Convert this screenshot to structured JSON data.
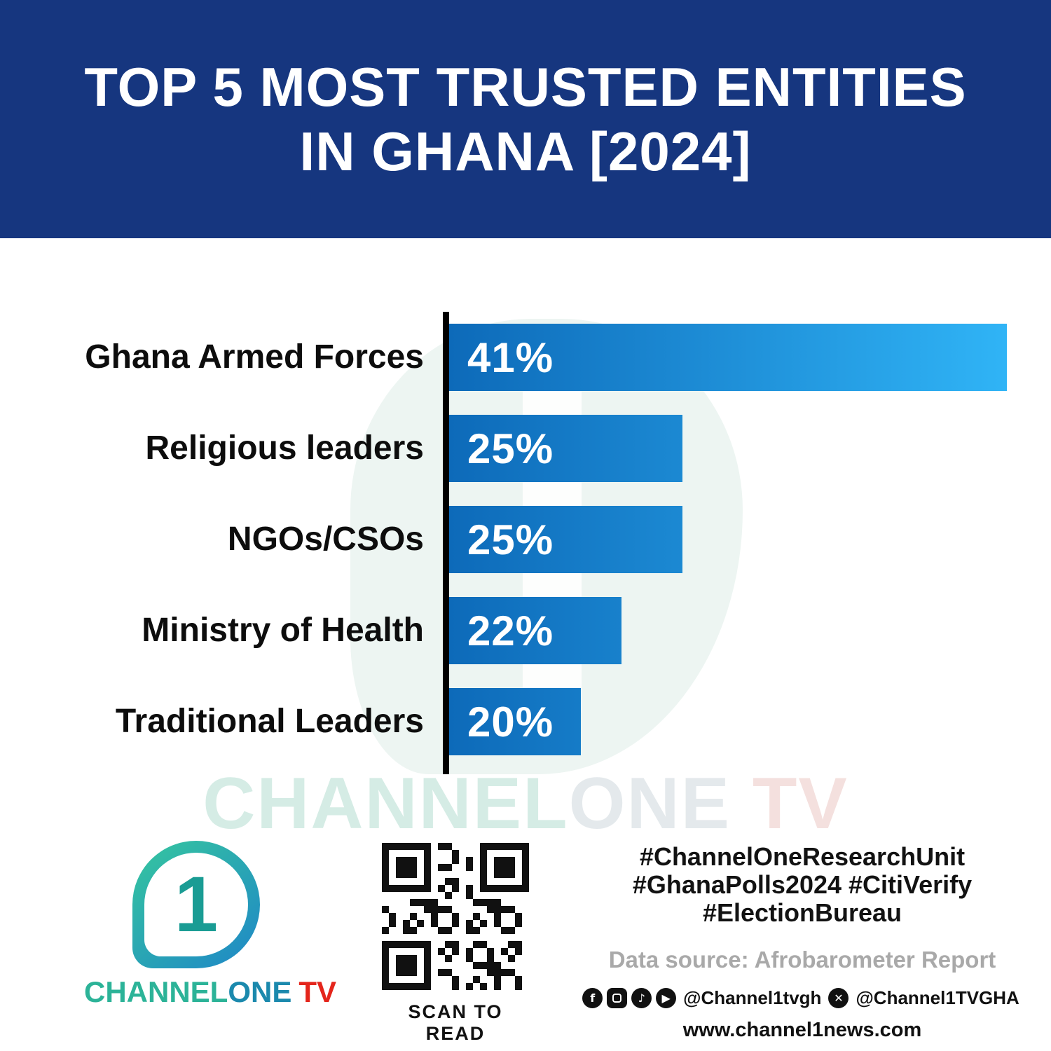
{
  "header": {
    "title_line1": "TOP 5 MOST TRUSTED ENTITIES",
    "title_line2": "IN GHANA [2024]"
  },
  "chart_data": {
    "type": "bar",
    "orientation": "horizontal",
    "title": "Top 5 Most Trusted Entities in Ghana [2024]",
    "categories": [
      "Ghana Armed Forces",
      "Religious leaders",
      "NGOs/CSOs",
      "Ministry of Health",
      "Traditional Leaders"
    ],
    "values": [
      41,
      25,
      25,
      22,
      20
    ],
    "value_labels": [
      "41%",
      "25%",
      "25%",
      "22%",
      "20%"
    ],
    "unit": "percent",
    "axis_display_range": [
      13.5,
      41
    ],
    "bar_color_start": "#0d6ab9",
    "bar_color_end": "#30b4f6",
    "grid": false,
    "legend": false,
    "source": "Afrobarometer Report"
  },
  "watermark": {
    "part1": "CHANNEL",
    "part2": "ONE",
    "part3": "TV"
  },
  "footer": {
    "logo": {
      "numeral": "1",
      "channel": "CHANNEL",
      "one": "ONE",
      "tv": "TV"
    },
    "qr_caption": "SCAN TO READ",
    "hashtags_line1": "#ChannelOneResearchUnit",
    "hashtags_line2": "#GhanaPolls2024 #CitiVerify",
    "hashtags_line3": "#ElectionBureau",
    "data_source": "Data source: Afrobarometer Report",
    "social_handle1": "@Channel1tvgh",
    "social_handle2": "@Channel1TVGHA",
    "website": "www.channel1news.com"
  },
  "colors": {
    "header_bg": "#16367f",
    "axis": "#000000",
    "logo_teal": "#2cb398",
    "logo_blue": "#1b89ad",
    "logo_red": "#e4251b"
  }
}
